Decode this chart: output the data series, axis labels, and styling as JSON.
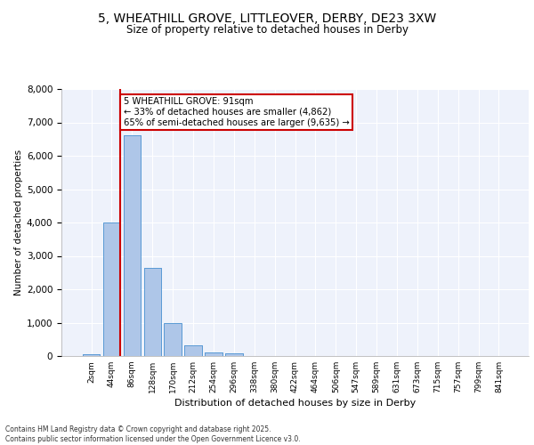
{
  "title": "5, WHEATHILL GROVE, LITTLEOVER, DERBY, DE23 3XW",
  "subtitle": "Size of property relative to detached houses in Derby",
  "xlabel": "Distribution of detached houses by size in Derby",
  "ylabel": "Number of detached properties",
  "bar_labels": [
    "2sqm",
    "44sqm",
    "86sqm",
    "128sqm",
    "170sqm",
    "212sqm",
    "254sqm",
    "296sqm",
    "338sqm",
    "380sqm",
    "422sqm",
    "464sqm",
    "506sqm",
    "547sqm",
    "589sqm",
    "631sqm",
    "673sqm",
    "715sqm",
    "757sqm",
    "799sqm",
    "841sqm"
  ],
  "bar_values": [
    50,
    4000,
    6620,
    2650,
    980,
    310,
    120,
    90,
    0,
    0,
    0,
    0,
    0,
    0,
    0,
    0,
    0,
    0,
    0,
    0,
    0
  ],
  "bar_color": "#aec6e8",
  "bar_edge_color": "#5b9bd5",
  "bg_color": "#eef2fb",
  "grid_color": "#ffffff",
  "vline_x": 1.425,
  "vline_color": "#cc0000",
  "annotation_text": "5 WHEATHILL GROVE: 91sqm\n← 33% of detached houses are smaller (4,862)\n65% of semi-detached houses are larger (9,635) →",
  "annotation_box_color": "#cc0000",
  "ylim": [
    0,
    8000
  ],
  "yticks": [
    0,
    1000,
    2000,
    3000,
    4000,
    5000,
    6000,
    7000,
    8000
  ],
  "footer_line1": "Contains HM Land Registry data © Crown copyright and database right 2025.",
  "footer_line2": "Contains public sector information licensed under the Open Government Licence v3.0."
}
